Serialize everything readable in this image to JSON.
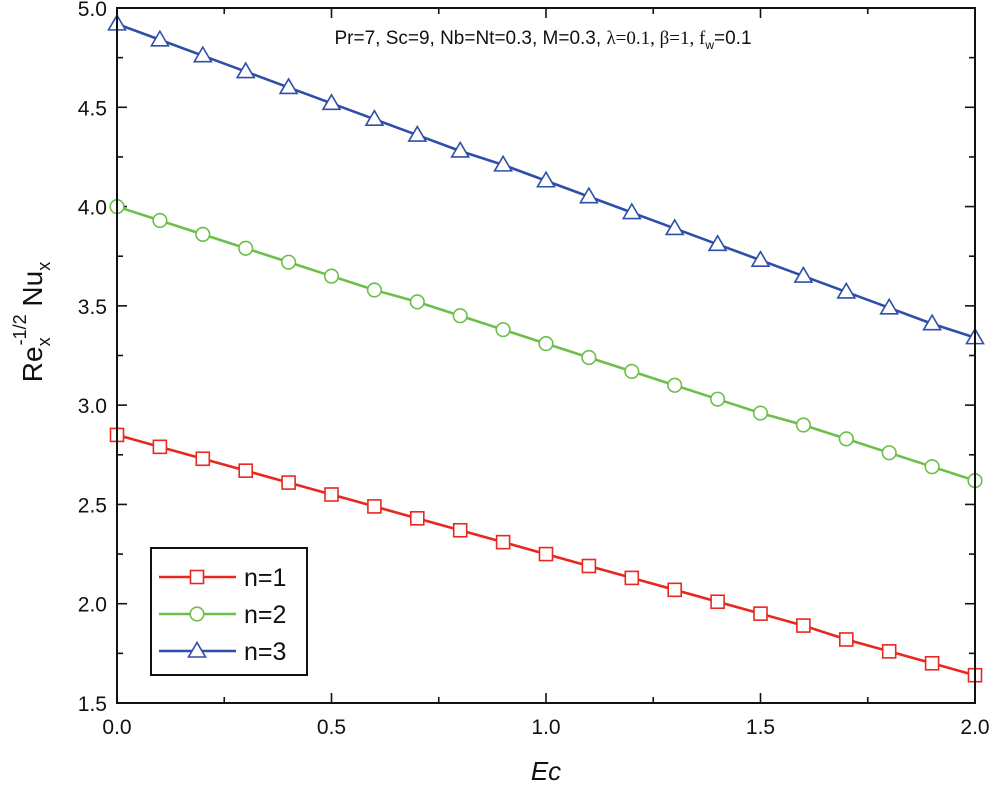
{
  "chart_data": {
    "type": "line",
    "xlabel": "Ec",
    "ylabel": {
      "base": "Re",
      "sub1": "x",
      "sup": "-1/2",
      "mid": " Nu",
      "sub2": "x"
    },
    "annotation": {
      "part1": "Pr=7, Sc=9, Nb=Nt=0.3, M=0.3, ",
      "part2": "λ=0.1, β=1, f",
      "sub": "w",
      "part3": "=0.1"
    },
    "xlim": [
      0,
      2
    ],
    "ylim": [
      1.5,
      5.0
    ],
    "x_ticks": [
      "0.0",
      "0.5",
      "1.0",
      "1.5",
      "2.0"
    ],
    "y_ticks": [
      "1.5",
      "2.0",
      "2.5",
      "3.0",
      "3.5",
      "4.0",
      "4.5",
      "5.0"
    ],
    "x_tick_values": [
      0,
      0.5,
      1.0,
      1.5,
      2.0
    ],
    "y_tick_values": [
      1.5,
      2.0,
      2.5,
      3.0,
      3.5,
      4.0,
      4.5,
      5.0
    ],
    "x": [
      0.0,
      0.1,
      0.2,
      0.3,
      0.4,
      0.5,
      0.6,
      0.7,
      0.8,
      0.9,
      1.0,
      1.1,
      1.2,
      1.3,
      1.4,
      1.5,
      1.6,
      1.7,
      1.8,
      1.9,
      2.0
    ],
    "legend_position": "bottom-left",
    "series": [
      {
        "name": "n=1",
        "color": "#e8281e",
        "marker": "square",
        "values": [
          2.85,
          2.79,
          2.73,
          2.67,
          2.61,
          2.55,
          2.49,
          2.43,
          2.37,
          2.31,
          2.25,
          2.19,
          2.13,
          2.07,
          2.01,
          1.95,
          1.89,
          1.82,
          1.76,
          1.7,
          1.64
        ]
      },
      {
        "name": "n=2",
        "color": "#6cbf4a",
        "marker": "circle",
        "values": [
          4.0,
          3.93,
          3.86,
          3.79,
          3.72,
          3.65,
          3.58,
          3.52,
          3.45,
          3.38,
          3.31,
          3.24,
          3.17,
          3.1,
          3.03,
          2.96,
          2.9,
          2.83,
          2.76,
          2.69,
          2.62
        ]
      },
      {
        "name": "n=3",
        "color": "#2f4ea8",
        "marker": "triangle",
        "values": [
          4.92,
          4.84,
          4.76,
          4.68,
          4.6,
          4.52,
          4.44,
          4.36,
          4.28,
          4.21,
          4.13,
          4.05,
          3.97,
          3.89,
          3.81,
          3.73,
          3.65,
          3.57,
          3.49,
          3.41,
          3.34
        ]
      }
    ]
  }
}
